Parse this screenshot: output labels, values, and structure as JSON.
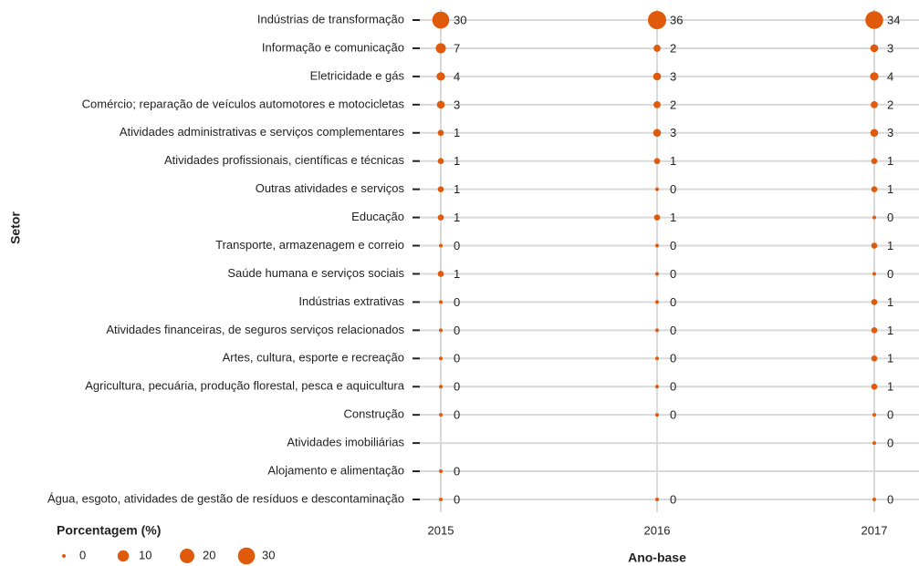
{
  "chart_data": {
    "type": "dot",
    "x_label": "Ano-base",
    "y_label": "Setor",
    "legend_title": "Porcentagem (%)",
    "size_legend": [
      0,
      10,
      20,
      30
    ],
    "color": "#e05a0c",
    "grid": true,
    "categories": [
      "Indústrias de transformação",
      "Informação e comunicação",
      "Eletricidade e gás",
      "Comércio; reparação de veículos automotores e motocicletas",
      "Atividades administrativas e serviços complementares",
      "Atividades profissionais, científicas e técnicas",
      "Outras atividades e serviços",
      "Educação",
      "Transporte, armazenagem e correio",
      "Saúde humana e serviços sociais",
      "Indústrias extrativas",
      "Atividades financeiras, de seguros serviços relacionados",
      "Artes, cultura, esporte e recreação",
      "Agricultura, pecuária, produção florestal, pesca e aquicultura",
      "Construção",
      "Atividades imobiliárias",
      "Alojamento e alimentação",
      "Água, esgoto, atividades de gestão de resíduos e descontaminação"
    ],
    "series": [
      {
        "name": "2015",
        "values": [
          30,
          7,
          4,
          3,
          1,
          1,
          1,
          1,
          0,
          1,
          0,
          0,
          0,
          0,
          0,
          null,
          0,
          0
        ]
      },
      {
        "name": "2016",
        "values": [
          36,
          2,
          3,
          2,
          3,
          1,
          0,
          1,
          0,
          0,
          0,
          0,
          0,
          0,
          0,
          null,
          null,
          0
        ]
      },
      {
        "name": "2017",
        "values": [
          34,
          3,
          4,
          2,
          3,
          1,
          1,
          0,
          1,
          0,
          1,
          1,
          1,
          1,
          0,
          0,
          null,
          0
        ]
      }
    ]
  }
}
